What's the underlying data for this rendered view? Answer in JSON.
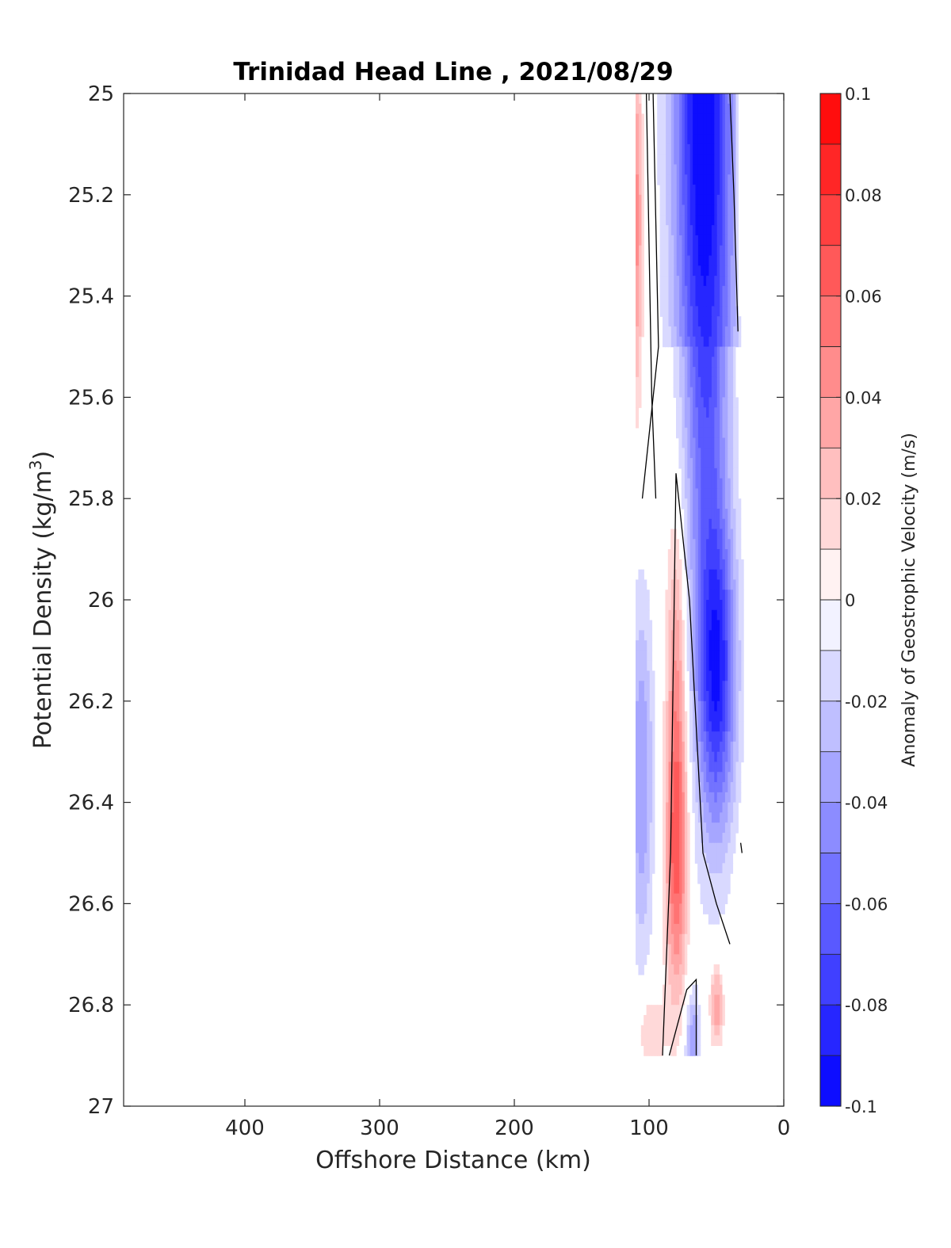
{
  "chart_data": {
    "type": "heatmap",
    "title": "Trinidad Head Line , 2021/08/29",
    "xlabel": "Offshore Distance (km)",
    "ylabel_main": "Potential Density (kg/m",
    "ylabel_sup": "3",
    "ylabel_close": ")",
    "xlim": [
      490,
      0
    ],
    "ylim": [
      25,
      27
    ],
    "x_reversed": true,
    "y_reversed": true,
    "xticks": [
      400,
      300,
      200,
      100,
      0
    ],
    "yticks": [
      25,
      25.2,
      25.4,
      25.6,
      25.8,
      26,
      26.2,
      26.4,
      26.6,
      26.8,
      27
    ],
    "ytick_labels": [
      "25",
      "25.2",
      "25.4",
      "25.6",
      "25.8",
      "26",
      "26.2",
      "26.4",
      "26.6",
      "26.8",
      "27"
    ],
    "colorbar": {
      "label": "Anomaly of Geostrophic Velocity (m/s)",
      "clim": [
        -0.1,
        0.1
      ],
      "levels": 20,
      "ticks": [
        0.1,
        0.08,
        0.06,
        0.04,
        0.02,
        0,
        -0.02,
        -0.04,
        -0.06,
        -0.08,
        -0.1
      ],
      "tick_labels": [
        "0.1",
        "0.08",
        "0.06",
        "0.04",
        "0.02",
        "0",
        "-0.02",
        "-0.04",
        "-0.06",
        "-0.08",
        "-0.1"
      ],
      "colormap": "blue-white-red"
    },
    "data_extent": {
      "x": [
        30,
        110
      ],
      "y": [
        25,
        26.9
      ]
    },
    "zero_contours": [
      [
        [
          97,
          25
        ],
        [
          95,
          25.25
        ],
        [
          93,
          25.5
        ],
        [
          105,
          25.8
        ]
      ],
      [
        [
          102,
          25
        ],
        [
          100,
          25.3
        ],
        [
          98,
          25.6
        ],
        [
          95,
          25.8
        ]
      ],
      [
        [
          40,
          25
        ],
        [
          37,
          25.2
        ],
        [
          34,
          25.47
        ]
      ],
      [
        [
          90,
          26.9
        ],
        [
          84,
          26.5
        ],
        [
          80,
          25.75
        ],
        [
          70,
          26
        ],
        [
          60,
          26.5
        ],
        [
          50,
          26.6
        ],
        [
          40,
          26.68
        ]
      ],
      [
        [
          65,
          26.9
        ],
        [
          65,
          26.75
        ],
        [
          72,
          26.77
        ],
        [
          85,
          26.9
        ]
      ],
      [
        [
          32,
          26.48
        ],
        [
          31,
          26.5
        ]
      ]
    ],
    "structure": [
      {
        "label": "negative core",
        "peak": -0.1,
        "x": 62,
        "y": 25.05
      },
      {
        "label": "positive core",
        "peak": 0.06,
        "x": 80,
        "y": 26.5
      },
      {
        "label": "positive edge",
        "peak": 0.04,
        "x": 108,
        "y": 25.2
      }
    ]
  }
}
